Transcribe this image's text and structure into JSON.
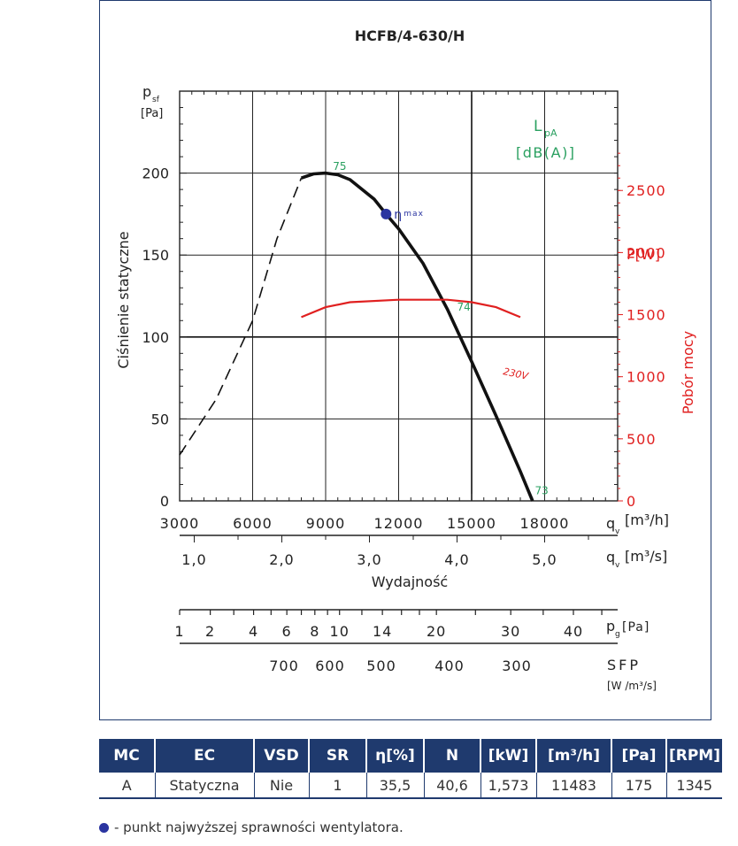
{
  "chart_data": {
    "type": "line",
    "title": "HCFB/4-630/H",
    "ylabel": "Ciśnienie statyczne",
    "ylabel_unit": "[Pa]",
    "ylabel_symbol_main": "p",
    "ylabel_symbol_sub": "sf",
    "xlabel": "Wydajność",
    "y2label": "Pobór mocy",
    "y2label_unit": "P[W]",
    "lpa_main": "L",
    "lpa_sub": "pA",
    "lpa_unit": "[dB(A)]",
    "ylim": [
      0,
      250
    ],
    "xlim": [
      3000,
      21000
    ],
    "y2lim": [
      0,
      3300
    ],
    "yticks": [
      "0",
      "50",
      "100",
      "150",
      "200"
    ],
    "y2ticks": [
      "0",
      "500",
      "1000",
      "1500",
      "2000",
      "2500"
    ],
    "x_m3h_ticks": [
      "3000",
      "6000",
      "9000",
      "12000",
      "15000",
      "18000"
    ],
    "x_m3h_label_main": "q",
    "x_m3h_label_sub": "v",
    "x_m3h_unit": "[m³/h]",
    "x_m3s_ticks": [
      "1,0",
      "2,0",
      "3,0",
      "4,0",
      "5,0"
    ],
    "x_m3s_unit": "[m³/s]",
    "pg_ticks": [
      "1",
      "2",
      "4",
      "6",
      "8",
      "10",
      "14",
      "20",
      "30",
      "40"
    ],
    "pg_label_main": "p",
    "pg_label_sub": "g",
    "pg_unit": "[Pa]",
    "sfp_ticks": [
      "700",
      "600",
      "500",
      "400",
      "300"
    ],
    "sfp_label": "SFP",
    "sfp_unit": "[W /m³/s]",
    "grid": true,
    "series": [
      {
        "name": "pressure_dashed",
        "x": [
          3000,
          4500,
          6000,
          7000,
          8000
        ],
        "y": [
          28,
          62,
          110,
          160,
          197
        ]
      },
      {
        "name": "pressure_solid",
        "x": [
          8000,
          8500,
          9000,
          9500,
          10000,
          11000,
          11483,
          12000,
          13000,
          14000,
          15000,
          16000,
          17000,
          17500
        ],
        "y": [
          197,
          199.5,
          200,
          199,
          196,
          184,
          175,
          166,
          145,
          117,
          85,
          52,
          18,
          0
        ]
      },
      {
        "name": "230V",
        "axis": "y2",
        "x": [
          8000,
          9000,
          10000,
          12000,
          14000,
          15000,
          16000,
          17000
        ],
        "y": [
          1480,
          1560,
          1600,
          1620,
          1620,
          1600,
          1560,
          1480
        ]
      }
    ],
    "efficiency_point": {
      "label": "η",
      "label_sub": "max",
      "x": 11483,
      "y": 175
    },
    "noise_labels": [
      {
        "text": "75",
        "x": 9300,
        "y": 202
      },
      {
        "text": "74",
        "x": 14400,
        "y": 116
      },
      {
        "text": "73",
        "x": 17600,
        "y": 4
      }
    ],
    "voltage_label": "230V"
  },
  "table": {
    "headers": [
      "MC",
      "EC",
      "VSD",
      "SR",
      "η[%]",
      "N",
      "[kW]",
      "[m³/h]",
      "[Pa]",
      "[RPM]"
    ],
    "row": [
      "A",
      "Statyczna",
      "Nie",
      "1",
      "35,5",
      "40,6",
      "1,573",
      "11483",
      "175",
      "1345"
    ]
  },
  "footnote": "- punkt najwyższej sprawności wentylatora.",
  "colors": {
    "navy": "#1f3a6e",
    "red": "#e02020",
    "green": "#2aa060",
    "point": "#2a34a0"
  }
}
